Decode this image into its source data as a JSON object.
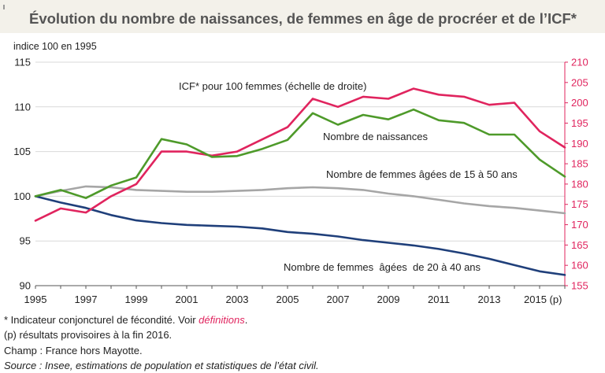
{
  "header": {
    "title": "Évolution du nombre de naissances, de femmes en âge de procréer et de l’ICF*"
  },
  "colors": {
    "green": "#4e9a2a",
    "red": "#e0245e",
    "gray": "#a6a6a6",
    "navy": "#1f3f7a",
    "grid": "#d9d9d9"
  },
  "chart_data": {
    "type": "line",
    "subtitle": "indice 100 en 1995",
    "x": [
      1995,
      1996,
      1997,
      1998,
      1999,
      2000,
      2001,
      2002,
      2003,
      2004,
      2005,
      2006,
      2007,
      2008,
      2009,
      2010,
      2011,
      2012,
      2013,
      2014,
      2015,
      2016
    ],
    "x_tick_labels": [
      "1995",
      "1997",
      "1999",
      "2001",
      "2003",
      "2005",
      "2007",
      "2009",
      "2011",
      "2013",
      "2015 (p)"
    ],
    "y_left": {
      "min": 90,
      "max": 115,
      "ticks": [
        "90",
        "95",
        "100",
        "105",
        "110",
        "115"
      ]
    },
    "y_right": {
      "min": 155,
      "max": 210,
      "ticks": [
        "155",
        "160",
        "165",
        "170",
        "175",
        "180",
        "185",
        "190",
        "195",
        "200",
        "205",
        "210"
      ]
    },
    "grid": "horizontal",
    "series": [
      {
        "name": "Nombre de naissances",
        "label": "Nombre de naissances",
        "color": "#4e9a2a",
        "axis": "left",
        "values": [
          100,
          100.7,
          99.8,
          101.2,
          102.1,
          106.4,
          105.8,
          104.4,
          104.5,
          105.3,
          106.3,
          109.3,
          108.0,
          109.1,
          108.6,
          109.7,
          108.5,
          108.2,
          106.9,
          106.9,
          104.1,
          102.2
        ]
      },
      {
        "name": "ICF* pour 100 femmes (échelle de droite)",
        "label": "ICF* pour 100 femmes (échelle de droite)",
        "color": "#e0245e",
        "axis": "right",
        "values": [
          171,
          174,
          173,
          177,
          180,
          188,
          188,
          187,
          188,
          191,
          194,
          201,
          199,
          201.5,
          201,
          203.5,
          202,
          201.5,
          199.5,
          200,
          193,
          189
        ]
      },
      {
        "name": "Nombre de femmes âgées de 15 à 50 ans",
        "label": "Nombre de femmes âgées de 15 à 50 ans",
        "color": "#a6a6a6",
        "axis": "left",
        "values": [
          100,
          100.6,
          101.1,
          101,
          100.7,
          100.6,
          100.5,
          100.5,
          100.6,
          100.7,
          100.9,
          101,
          100.9,
          100.7,
          100.3,
          100,
          99.6,
          99.2,
          98.9,
          98.7,
          98.4,
          98.1
        ]
      },
      {
        "name": "Nombre de femmes âgées de 20 à 40 ans",
        "label": "Nombre de femmes  âgées  de 20 à 40 ans",
        "color": "#1f3f7a",
        "axis": "left",
        "values": [
          100,
          99.3,
          98.7,
          97.9,
          97.3,
          97,
          96.8,
          96.7,
          96.6,
          96.4,
          96,
          95.8,
          95.5,
          95.1,
          94.8,
          94.5,
          94.1,
          93.6,
          93,
          92.3,
          91.6,
          91.2
        ]
      }
    ]
  },
  "notes": {
    "line1_prefix": "* Indicateur conjoncturel de fécondité. Voir ",
    "line1_link": "définitions",
    "line1_suffix": ".",
    "line2": "(p) résultats provisoires à la fin 2016.",
    "line3": "Champ : France hors Mayotte.",
    "line4": "Source : Insee, estimations de population et statistiques de l’état civil."
  }
}
